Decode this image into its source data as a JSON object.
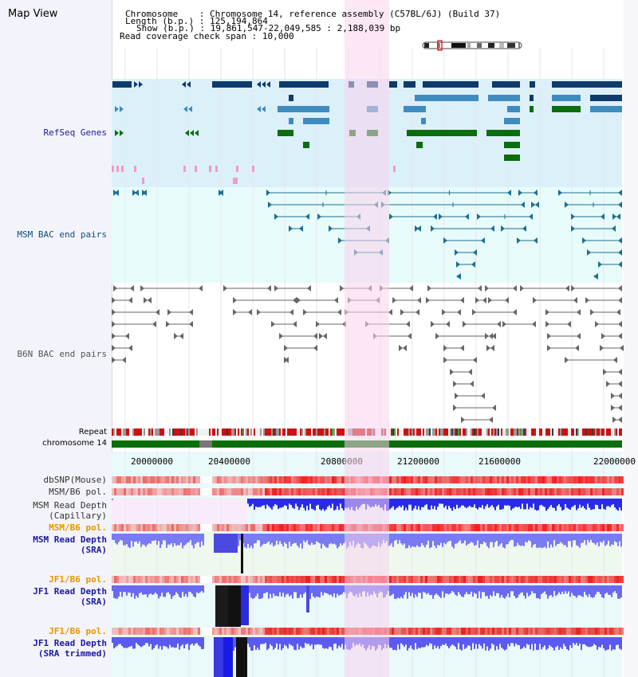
{
  "app_title": "Map View",
  "info": {
    "chromosome_label": "Chromosome",
    "chromosome_value": "Chromosome 14, reference assembly (C57BL/6J) (Build 37)",
    "length_label": "Length (b.p.)",
    "length_value": "125,194,864",
    "show_label": "Show (b.p.)",
    "show_value": "19,861,547-22,049,585 : 2,188,039 bp",
    "coverage_label": "Read coverage check span",
    "coverage_value": "10,000"
  },
  "tracks": {
    "refseq": "RefSeq Genes",
    "msm_bac": "MSM BAC end pairs",
    "b6n_bac": "B6N BAC end pairs",
    "repeat": "Repeat",
    "chromosome": "chromosome 14",
    "dbsnp": "dbSNP(Mouse)",
    "msm_b6_pol_1": "MSM/B6 pol.",
    "msm_depth_cap_1": "MSM Read Depth",
    "msm_depth_cap_2": "(Capillary)",
    "msm_b6_pol_2": "MSM/B6 pol.",
    "msm_depth_sra_1": "MSM Read Depth",
    "msm_depth_sra_2": "(SRA)",
    "jf1_b6_pol_1": "JF1/B6 pol.",
    "jf1_depth_sra_1": "JF1 Read Depth",
    "jf1_depth_sra_2": "(SRA)",
    "jf1_b6_pol_2": "JF1/B6 pol.",
    "jf1_depth_trim_1": "JF1 Read Depth",
    "jf1_depth_trim_2": "(SRA trimmed)"
  },
  "axis_ticks": [
    "20000000",
    "20400000",
    "20800000",
    "21200000",
    "21600000",
    "22000000"
  ],
  "colors": {
    "refseq_bg": "#dcf0fa",
    "bac_bg": "#e8fbfb",
    "highlight": "#f8d4ec",
    "gene_dark": "#0e3a6c",
    "gene_mid": "#3e8cbf",
    "gene_green": "#0a6e0a",
    "msm_label": "#0b4f7c",
    "b6n_label": "#555555",
    "refseq_label": "#1a1aa0",
    "orange_label": "#e69500",
    "depth_label": "#1a1aa0",
    "repeat_red": "#cc1111",
    "chrom_green": "#0a6e0a"
  }
}
